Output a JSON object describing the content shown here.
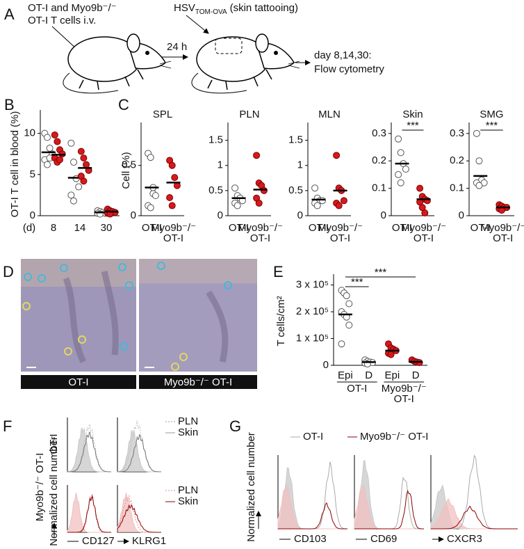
{
  "panel_a": {
    "label": "A",
    "line1": "OT-I and Myo9b⁻/⁻",
    "line2": "OT-I T cells i.v.",
    "hsv": "HSV",
    "hsv_sub": "TOM-OVA",
    "hsv_note": "(skin tattooing)",
    "interval": "24 h",
    "readout1": "day 8,14,30:",
    "readout2": "Flow cytometry"
  },
  "panel_d": {
    "label": "D",
    "captions": [
      "OT-I",
      "Myo9b⁻/⁻ OT-I"
    ]
  },
  "panel_f": {
    "label": "F",
    "row1": "OT-I",
    "row2": "Myo9b⁻/⁻ OT-I",
    "ylabel": "Normalized cell number",
    "legend_top": [
      "PLN",
      "Skin"
    ],
    "legend_bottom": [
      "PLN",
      "Skin"
    ],
    "markers": [
      "CD127",
      "KLRG1"
    ]
  },
  "panel_g": {
    "label": "G",
    "legend": [
      "OT-I",
      "Myo9b⁻/⁻ OT-I"
    ],
    "ylabel": "Normalized cell number",
    "markers": [
      "CD103",
      "CD69",
      "CXCR3"
    ]
  },
  "chart_data": [
    {
      "type": "dot",
      "panel_label": "B",
      "ylabel": "OT-I T cell in blood (%)",
      "xlabel": "(d)",
      "categories": [
        "8",
        "14",
        "30"
      ],
      "ylim": [
        0,
        12.5
      ],
      "yticks": [
        0,
        5,
        10
      ],
      "series": [
        {
          "color": "#ffffff",
          "values": [
            [
              10,
              9.5,
              8.2,
              7.5,
              6.8,
              6.2,
              7
            ],
            [
              8.8,
              6.5,
              4.5,
              3.5,
              2.5,
              1.8
            ],
            [
              0.6,
              0.5,
              0.4,
              0.3,
              0.3,
              0.2
            ]
          ],
          "means": [
            7.7,
            4.6,
            0.4
          ]
        },
        {
          "color": "#d7191c",
          "values": [
            [
              9.8,
              9,
              8,
              7.5,
              7,
              6.5,
              6.8
            ],
            [
              7.8,
              7,
              6.2,
              5.5,
              4.8,
              4.2
            ],
            [
              0.8,
              0.6,
              0.5,
              0.4,
              0.3,
              0.2
            ]
          ],
          "means": [
            7.4,
            5.8,
            0.5
          ]
        }
      ]
    },
    {
      "type": "dot",
      "panel_label": "C",
      "title": "SPL",
      "ylabel": "Cell (%)",
      "categories": [
        "OT-I",
        "Myo9b⁻/⁻ OT-I"
      ],
      "colors": [
        "#ffffff",
        "#d7191c"
      ],
      "ylim": [
        0,
        0.9
      ],
      "yticks": [
        0,
        0.5
      ],
      "values": [
        [
          0.62,
          0.58,
          0.22,
          0.2,
          0.1,
          0.08,
          0.28
        ],
        [
          0.55,
          0.5,
          0.38,
          0.3,
          0.18,
          0.1
        ]
      ],
      "means": [
        0.28,
        0.33
      ]
    },
    {
      "type": "dot",
      "title": "PLN",
      "categories": [
        "OT-I",
        "Myo9b⁻/⁻ OT-I"
      ],
      "colors": [
        "#ffffff",
        "#d7191c"
      ],
      "ylim": [
        0,
        1.8
      ],
      "yticks": [
        0,
        0.5,
        1,
        1.5
      ],
      "values": [
        [
          0.55,
          0.4,
          0.35,
          0.3,
          0.25,
          0.2
        ],
        [
          1.2,
          0.65,
          0.6,
          0.5,
          0.35,
          0.25
        ]
      ],
      "means": [
        0.35,
        0.52
      ]
    },
    {
      "type": "dot",
      "title": "MLN",
      "categories": [
        "OT-I",
        "Myo9b⁻/⁻ OT-I"
      ],
      "colors": [
        "#ffffff",
        "#d7191c"
      ],
      "ylim": [
        0,
        1.8
      ],
      "yticks": [
        0,
        0.5,
        1,
        1.5
      ],
      "values": [
        [
          0.55,
          0.35,
          0.3,
          0.3,
          0.25,
          0.2
        ],
        [
          1.2,
          0.55,
          0.5,
          0.3,
          0.25,
          0.2
        ]
      ],
      "means": [
        0.32,
        0.5
      ]
    },
    {
      "type": "dot",
      "title": "Skin",
      "categories": [
        "OT-I",
        "Myo9b⁻/⁻ OT-I"
      ],
      "colors": [
        "#ffffff",
        "#d7191c"
      ],
      "ylim": [
        0,
        0.33
      ],
      "yticks": [
        0,
        0.1,
        0.2,
        0.3
      ],
      "values": [
        [
          0.28,
          0.23,
          0.19,
          0.17,
          0.15,
          0.12
        ],
        [
          0.1,
          0.07,
          0.06,
          0.055,
          0.05,
          0.03,
          0.01
        ]
      ],
      "means": [
        0.19,
        0.06
      ],
      "annotations": [
        "***"
      ]
    },
    {
      "type": "dot",
      "title": "SMG",
      "categories": [
        "OT-I",
        "Myo9b⁻/⁻ OT-I"
      ],
      "colors": [
        "#ffffff",
        "#d7191c"
      ],
      "ylim": [
        0,
        0.33
      ],
      "yticks": [
        0,
        0.1,
        0.2,
        0.3
      ],
      "values": [
        [
          0.3,
          0.2,
          0.13,
          0.12,
          0.12,
          0.11
        ],
        [
          0.04,
          0.035,
          0.03,
          0.03,
          0.025,
          0.02
        ]
      ],
      "means": [
        0.145,
        0.03
      ],
      "annotations": [
        "***"
      ]
    },
    {
      "type": "dot",
      "panel_label": "E",
      "ylabel": "T cells/cm²",
      "categories": [
        "Epi",
        "D",
        "Epi",
        "D"
      ],
      "groups": [
        "OT-I",
        "Myo9b⁻/⁻ OT-I"
      ],
      "colors": [
        "#ffffff",
        "#ffffff",
        "#d7191c",
        "#d7191c"
      ],
      "ylim": [
        0,
        330000
      ],
      "yticks": [
        0,
        {
          "value": 100000,
          "label": "1 x 10⁵"
        },
        {
          "value": 200000,
          "label": "2 x 10⁵"
        },
        {
          "value": 300000,
          "label": "3 x 10⁵"
        }
      ],
      "values": [
        [
          280000,
          270000,
          260000,
          230000,
          200000,
          190000,
          180000,
          150000,
          80000
        ],
        [
          20000,
          15000,
          12000,
          10000,
          8000,
          5000
        ],
        [
          80000,
          65000,
          60000,
          55000,
          45000,
          40000
        ],
        [
          20000,
          15000,
          12000,
          10000
        ]
      ],
      "means": [
        190000,
        12000,
        55000,
        13000
      ],
      "annotations": [
        "***",
        "***"
      ]
    }
  ]
}
